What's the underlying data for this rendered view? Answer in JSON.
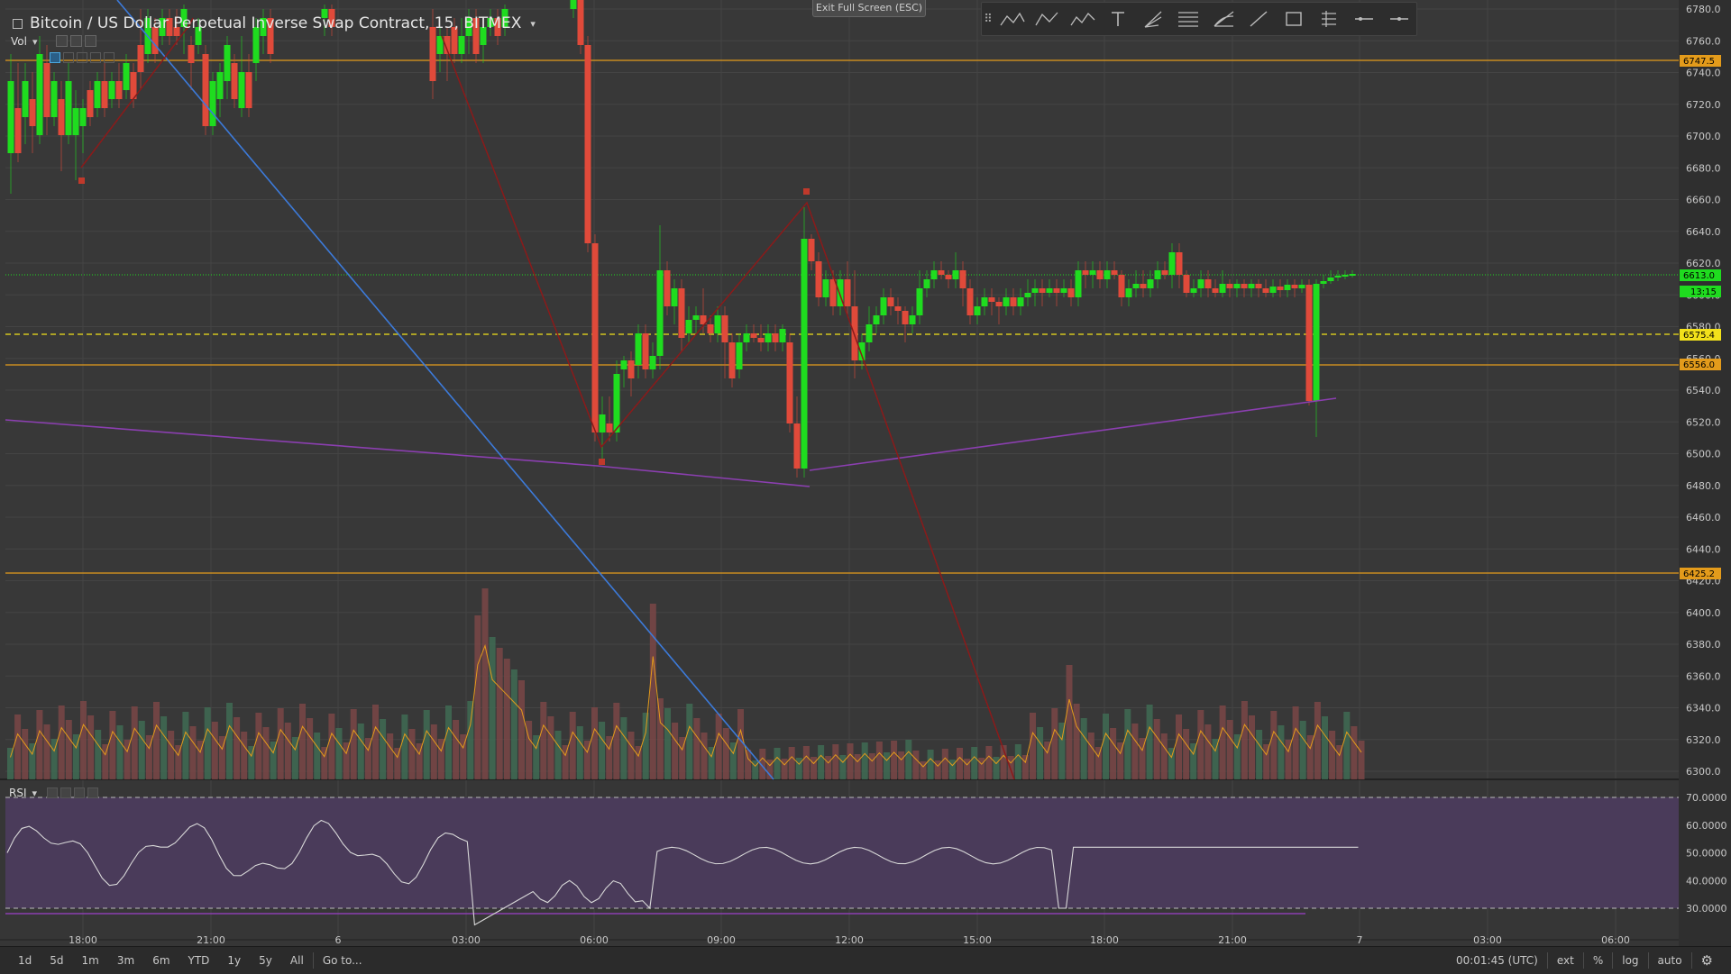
{
  "chart": {
    "title": "Bitcoin / US Dollar Perpetual Inverse Swap Contract, 15, BITMEX",
    "volume_label": "Vol",
    "rsi_label": "RSI",
    "exit_fullscreen": "Exit Full Screen (ESC)",
    "price_axis_labels": [
      "6780.0",
      "6760.0",
      "6740.0",
      "6720.0",
      "6700.0",
      "6680.0",
      "6660.0",
      "6640.0",
      "6620.0",
      "6600.0",
      "6580.0",
      "6560.0",
      "6540.0",
      "6520.0",
      "6500.0",
      "6480.0",
      "6460.0",
      "6440.0",
      "6420.0",
      "6400.0",
      "6380.0",
      "6360.0",
      "6340.0",
      "6320.0",
      "6300.0"
    ],
    "rsi_axis_labels": [
      "70.0000",
      "60.0000",
      "50.0000",
      "40.0000",
      "30.0000"
    ],
    "time_axis_labels": [
      "18:00",
      "21:00",
      "6",
      "03:00",
      "06:00",
      "09:00",
      "12:00",
      "15:00",
      "18:00",
      "21:00",
      "7",
      "03:00",
      "06:00"
    ],
    "tags": {
      "level_6747": "6747.5",
      "level_6613": "6613.0",
      "countdown": "13:15",
      "level_6575": "6575.4",
      "level_6556": "6556.0",
      "level_6425": "6425.2"
    },
    "colors": {
      "background": "#363636",
      "up_candle": "#1fdc1f",
      "down_candle": "#e04a3a",
      "orange_line": "#e39b1b",
      "yellow_dashed": "#f2e11a",
      "blue_trend": "#3c7ad9",
      "purple_trend": "#8b3fb0",
      "darkred_zigzag": "#8b1a1a",
      "rsi_band": "#4e3e5e"
    }
  },
  "toolbar": {
    "tools": [
      "grip-icon",
      "pattern-xabcd-icon",
      "pattern-abcd-icon",
      "pattern-elliott-icon",
      "text-icon",
      "pitchfork-icon",
      "fib-retracement-icon",
      "fib-fan-icon",
      "trend-line-icon",
      "rectangle-icon",
      "long-position-icon",
      "horizontal-line-icon",
      "horizontal-ray-icon"
    ]
  },
  "bottom_bar": {
    "ranges": [
      "1d",
      "5d",
      "1m",
      "3m",
      "6m",
      "YTD",
      "1y",
      "5y",
      "All"
    ],
    "goto": "Go to...",
    "clock": "00:01:45 (UTC)",
    "ext": "ext",
    "percent": "%",
    "log": "log",
    "auto": "auto"
  }
}
